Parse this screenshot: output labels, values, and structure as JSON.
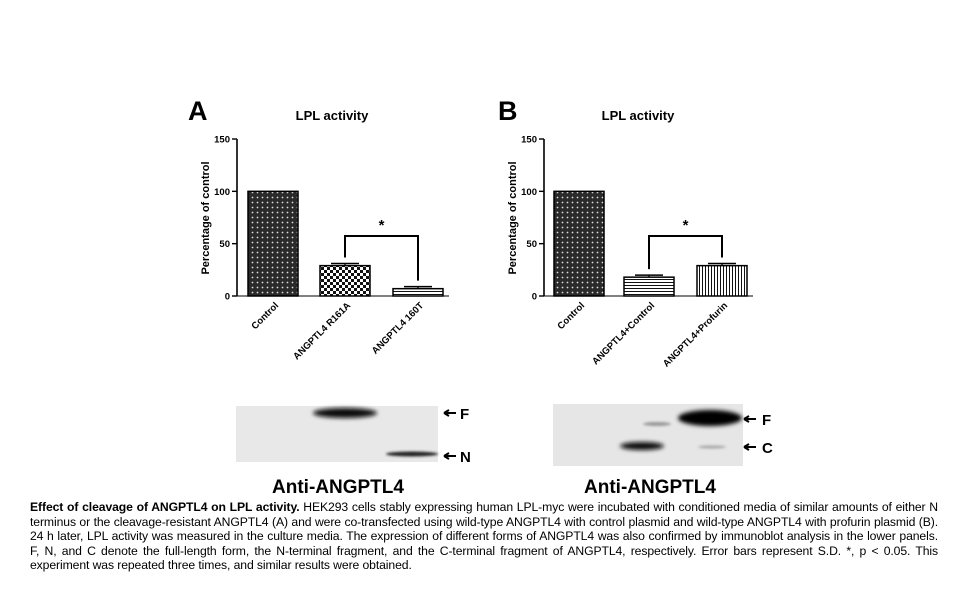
{
  "panels": [
    {
      "letter": "A",
      "chart_data": {
        "type": "bar",
        "title": "LPL activity",
        "ylabel": "Percentage of control",
        "ylim": [
          0,
          150
        ],
        "yticks": [
          "0",
          "50",
          "100",
          "150"
        ],
        "categories": [
          "Control",
          "ANGPTL4 R161A",
          "ANGPTL4 160T"
        ],
        "values": [
          100,
          29,
          7
        ],
        "errors": [
          0,
          2,
          2
        ],
        "patterns": [
          "dots-dark",
          "checker",
          "horizontal-lines"
        ],
        "significance": {
          "between": [
            1,
            2
          ],
          "label": "*"
        }
      },
      "blot": {
        "labels": [
          "F",
          "N"
        ],
        "caption": "Anti-ANGPTL4"
      }
    },
    {
      "letter": "B",
      "chart_data": {
        "type": "bar",
        "title": "LPL activity",
        "ylabel": "Percentage of control",
        "ylim": [
          0,
          150
        ],
        "yticks": [
          "0",
          "50",
          "100",
          "150"
        ],
        "categories": [
          "Control",
          "ANGPTL4+Control",
          "ANGPTL4+Profurin"
        ],
        "values": [
          100,
          18,
          29
        ],
        "errors": [
          0,
          2,
          2
        ],
        "patterns": [
          "dots-dark",
          "horizontal-lines",
          "vertical-lines"
        ],
        "significance": {
          "between": [
            1,
            2
          ],
          "label": "*"
        }
      },
      "blot": {
        "labels": [
          "F",
          "C"
        ],
        "caption": "Anti-ANGPTL4"
      }
    }
  ],
  "caption": {
    "title": "Effect of cleavage of ANGPTL4 on LPL activity.",
    "text": "HEK293 cells stably expressing human LPL-myc were incubated with conditioned media of similar amounts of either N terminus or the cleavage-resistant ANGPTL4 (A) and were co-transfected using wild-type ANGPTL4 with control plasmid and wild-type ANGPTL4 with profurin plasmid (B). 24 h later, LPL activity was measured in the culture media. The expression of different forms of ANGPTL4 was also confirmed by immunoblot analysis in the lower panels. F, N, and C denote the full-length form, the N-terminal fragment, and the C-terminal fragment of ANGPTL4, respectively. Error bars represent S.D. *, p < 0.05. This experiment was repeated three times, and similar results were obtained."
  }
}
